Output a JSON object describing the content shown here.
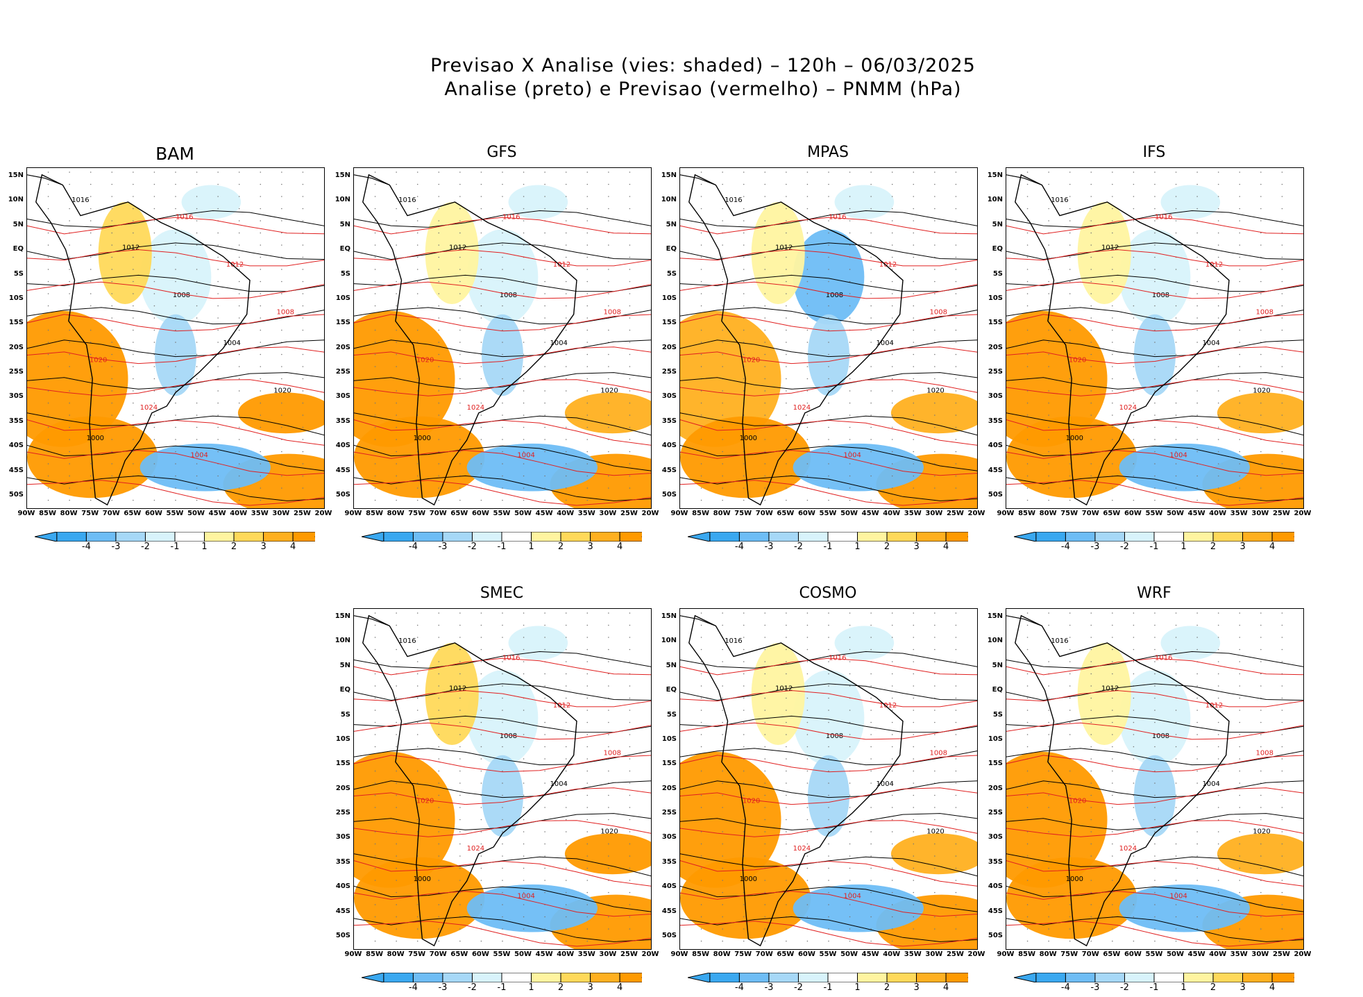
{
  "figure": {
    "title_line1": "Previsao X Analise (vies: shaded) – 120h – 06/03/2025",
    "title_line2": "Analise (preto) e Previsao (vermelho) – PNMM (hPa)"
  },
  "panels": [
    {
      "id": "bam",
      "title": "BAM",
      "bias": "warm"
    },
    {
      "id": "gfs",
      "title": "GFS",
      "bias": "mixed"
    },
    {
      "id": "mpas",
      "title": "MPAS",
      "bias": "cool"
    },
    {
      "id": "ifs",
      "title": "IFS",
      "bias": "mixed"
    },
    {
      "id": "smec",
      "title": "SMEC",
      "bias": "warm"
    },
    {
      "id": "cosmo",
      "title": "COSMO",
      "bias": "mixed"
    },
    {
      "id": "wrf",
      "title": "WRF",
      "bias": "mixed"
    }
  ],
  "axes": {
    "lat_labels": [
      "15N",
      "10N",
      "5N",
      "EQ",
      "5S",
      "10S",
      "15S",
      "20S",
      "25S",
      "30S",
      "35S",
      "40S",
      "45S",
      "50S"
    ],
    "lon_labels": [
      "90W",
      "85W",
      "80W",
      "75W",
      "70W",
      "65W",
      "60W",
      "55W",
      "50W",
      "45W",
      "40W",
      "35W",
      "30W",
      "25W",
      "20W"
    ]
  },
  "colorbar": {
    "labels": [
      "-4",
      "-3",
      "-2",
      "-1",
      "1",
      "2",
      "3",
      "4"
    ],
    "colors": [
      "#3aa8f0",
      "#6ebdf5",
      "#a6d8f7",
      "#d8f3fb",
      "#ffffff",
      "#fff4a0",
      "#ffd95a",
      "#ffb020",
      "#ff9a00"
    ]
  },
  "contour_labels": {
    "analysis": [
      "1016",
      "1012",
      "1008",
      "1004",
      "1020",
      "1000"
    ],
    "forecast": [
      "1016",
      "1012",
      "1008",
      "1020",
      "1024",
      "1004"
    ]
  },
  "colors": {
    "analysis": "#000000",
    "forecast": "#e02020",
    "land": "#000000"
  }
}
